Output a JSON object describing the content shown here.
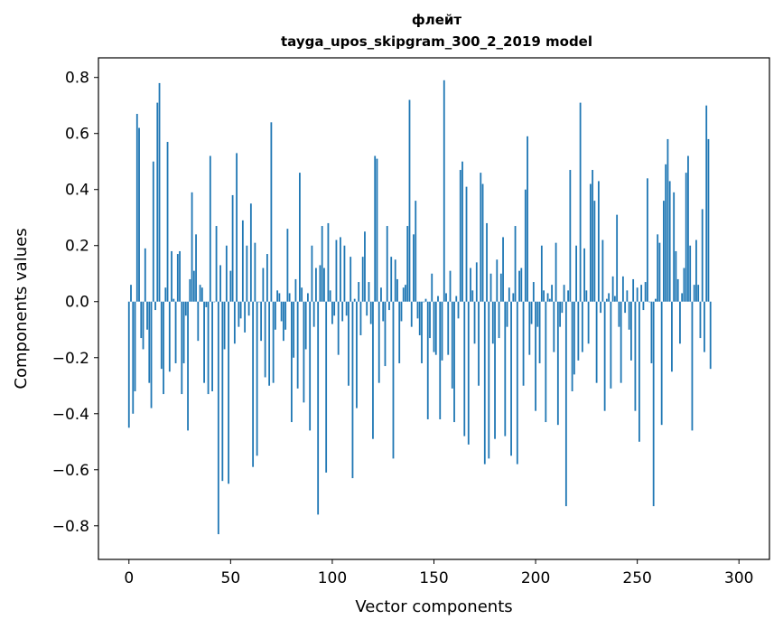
{
  "chart_data": {
    "type": "bar",
    "title": "флейт",
    "subtitle": "tayga_upos_skipgram_300_2_2019 model",
    "xlabel": "Vector components",
    "ylabel": "Components values",
    "xlim": [
      -15,
      315
    ],
    "ylim": [
      -0.92,
      0.87
    ],
    "xticks": [
      0,
      50,
      100,
      150,
      200,
      250,
      300
    ],
    "yticks": [
      -0.8,
      -0.6,
      -0.4,
      -0.2,
      0.0,
      0.2,
      0.4,
      0.6,
      0.8
    ],
    "xtick_labels": [
      "0",
      "50",
      "100",
      "150",
      "200",
      "250",
      "300"
    ],
    "ytick_labels": [
      "−0.8",
      "−0.6",
      "−0.4",
      "−0.2",
      "0.0",
      "0.2",
      "0.4",
      "0.6",
      "0.8"
    ],
    "bar_color": "#1f77b4",
    "values": [
      -0.45,
      0.06,
      -0.4,
      -0.32,
      0.67,
      0.62,
      -0.13,
      -0.17,
      0.19,
      -0.1,
      -0.29,
      -0.38,
      0.5,
      -0.03,
      0.71,
      0.78,
      -0.24,
      -0.33,
      0.05,
      0.57,
      -0.25,
      0.18,
      0.01,
      -0.22,
      0.17,
      0.18,
      -0.33,
      -0.22,
      -0.05,
      -0.46,
      0.08,
      0.39,
      0.11,
      0.24,
      -0.14,
      0.06,
      0.05,
      -0.29,
      -0.02,
      -0.33,
      0.52,
      -0.32,
      0.0,
      0.27,
      -0.83,
      0.13,
      -0.64,
      -0.17,
      0.2,
      -0.65,
      0.11,
      0.38,
      -0.15,
      0.53,
      -0.09,
      -0.06,
      0.29,
      -0.11,
      0.2,
      -0.05,
      0.35,
      -0.59,
      0.21,
      -0.55,
      0.0,
      -0.14,
      0.12,
      -0.27,
      0.17,
      -0.3,
      0.64,
      -0.29,
      -0.1,
      0.04,
      0.03,
      -0.07,
      -0.14,
      -0.1,
      0.26,
      0.03,
      -0.43,
      -0.2,
      0.08,
      -0.31,
      0.46,
      0.05,
      -0.36,
      -0.17,
      0.03,
      -0.46,
      0.2,
      -0.09,
      0.12,
      -0.76,
      0.13,
      0.27,
      0.12,
      -0.61,
      0.28,
      0.04,
      -0.08,
      -0.05,
      0.22,
      -0.19,
      0.23,
      -0.07,
      0.2,
      -0.05,
      -0.3,
      0.16,
      -0.63,
      0.01,
      -0.38,
      0.07,
      -0.12,
      0.16,
      0.25,
      -0.05,
      0.07,
      -0.08,
      -0.49,
      0.52,
      0.51,
      -0.29,
      0.05,
      -0.07,
      -0.23,
      0.27,
      -0.03,
      0.16,
      -0.56,
      0.15,
      0.08,
      -0.22,
      -0.07,
      0.05,
      0.06,
      0.27,
      0.72,
      -0.09,
      0.24,
      0.36,
      -0.06,
      -0.12,
      -0.22,
      0.0,
      0.01,
      -0.42,
      -0.13,
      0.1,
      -0.18,
      -0.19,
      0.02,
      -0.42,
      -0.21,
      0.79,
      0.03,
      -0.19,
      0.11,
      -0.31,
      -0.43,
      0.02,
      -0.06,
      0.47,
      0.5,
      -0.48,
      0.41,
      -0.51,
      0.12,
      0.04,
      -0.15,
      0.14,
      -0.3,
      0.46,
      0.42,
      -0.58,
      0.28,
      -0.56,
      0.1,
      -0.15,
      -0.49,
      0.15,
      -0.13,
      0.1,
      0.23,
      -0.48,
      -0.09,
      0.05,
      -0.55,
      0.03,
      0.27,
      -0.58,
      0.11,
      0.12,
      -0.3,
      0.4,
      0.59,
      -0.19,
      -0.08,
      0.07,
      -0.39,
      -0.09,
      -0.22,
      0.2,
      0.04,
      -0.43,
      0.03,
      0.01,
      0.06,
      -0.18,
      0.21,
      -0.44,
      -0.09,
      -0.04,
      0.06,
      -0.73,
      0.04,
      0.47,
      -0.32,
      -0.26,
      0.2,
      -0.21,
      0.71,
      -0.18,
      0.19,
      0.04,
      -0.15,
      0.42,
      0.47,
      0.36,
      -0.29,
      0.43,
      -0.04,
      0.22,
      -0.39,
      0.01,
      0.03,
      -0.31,
      0.09,
      0.02,
      0.31,
      -0.09,
      -0.29,
      0.09,
      -0.04,
      0.04,
      -0.1,
      -0.21,
      0.08,
      -0.39,
      0.05,
      -0.5,
      0.06,
      -0.03,
      0.07,
      0.44,
      0.0,
      -0.22,
      -0.73,
      0.01,
      0.24,
      0.21,
      -0.44,
      0.36,
      0.49,
      0.58,
      0.43,
      -0.25,
      0.39,
      0.18,
      0.08,
      -0.15,
      0.03,
      0.12,
      0.46,
      0.52,
      0.2,
      -0.46,
      0.06,
      0.22,
      0.06,
      -0.13,
      0.33,
      -0.18,
      0.7,
      0.58,
      -0.24
    ]
  }
}
